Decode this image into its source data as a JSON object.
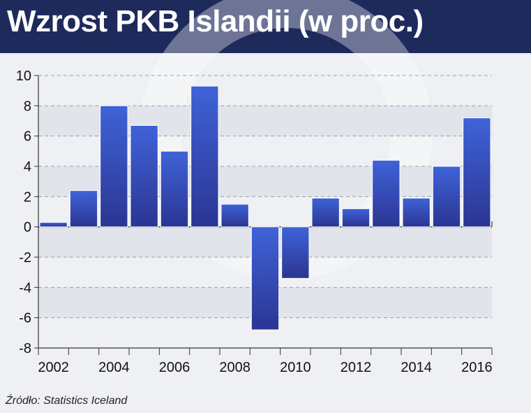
{
  "title": "Wzrost PKB Islandii (w proc.)",
  "source": "Źródło: Statistics Iceland",
  "colors": {
    "header": "#1f2a5c",
    "bar_top": "#3f63d8",
    "bar_bottom": "#2b3592",
    "band": "#e1e4ea",
    "background": "#eef0f3"
  },
  "chart_data": {
    "type": "bar",
    "categories": [
      "2002",
      "2003",
      "2004",
      "2005",
      "2006",
      "2007",
      "2008",
      "2009",
      "2010",
      "2011",
      "2012",
      "2013",
      "2014",
      "2015",
      "2016"
    ],
    "values": [
      0.3,
      2.4,
      8.0,
      6.7,
      5.0,
      9.3,
      1.5,
      -6.8,
      -3.4,
      1.9,
      1.2,
      4.4,
      1.9,
      4.0,
      7.2
    ],
    "x_tick_labels": [
      "2002",
      "2004",
      "2006",
      "2008",
      "2010",
      "2012",
      "2014",
      "2016"
    ],
    "y_ticks": [
      "10",
      "8",
      "6",
      "4",
      "2",
      "0",
      "-2",
      "-4",
      "-6",
      "-8"
    ],
    "ylim": [
      -8,
      10
    ],
    "grid": true,
    "legend": "none"
  }
}
